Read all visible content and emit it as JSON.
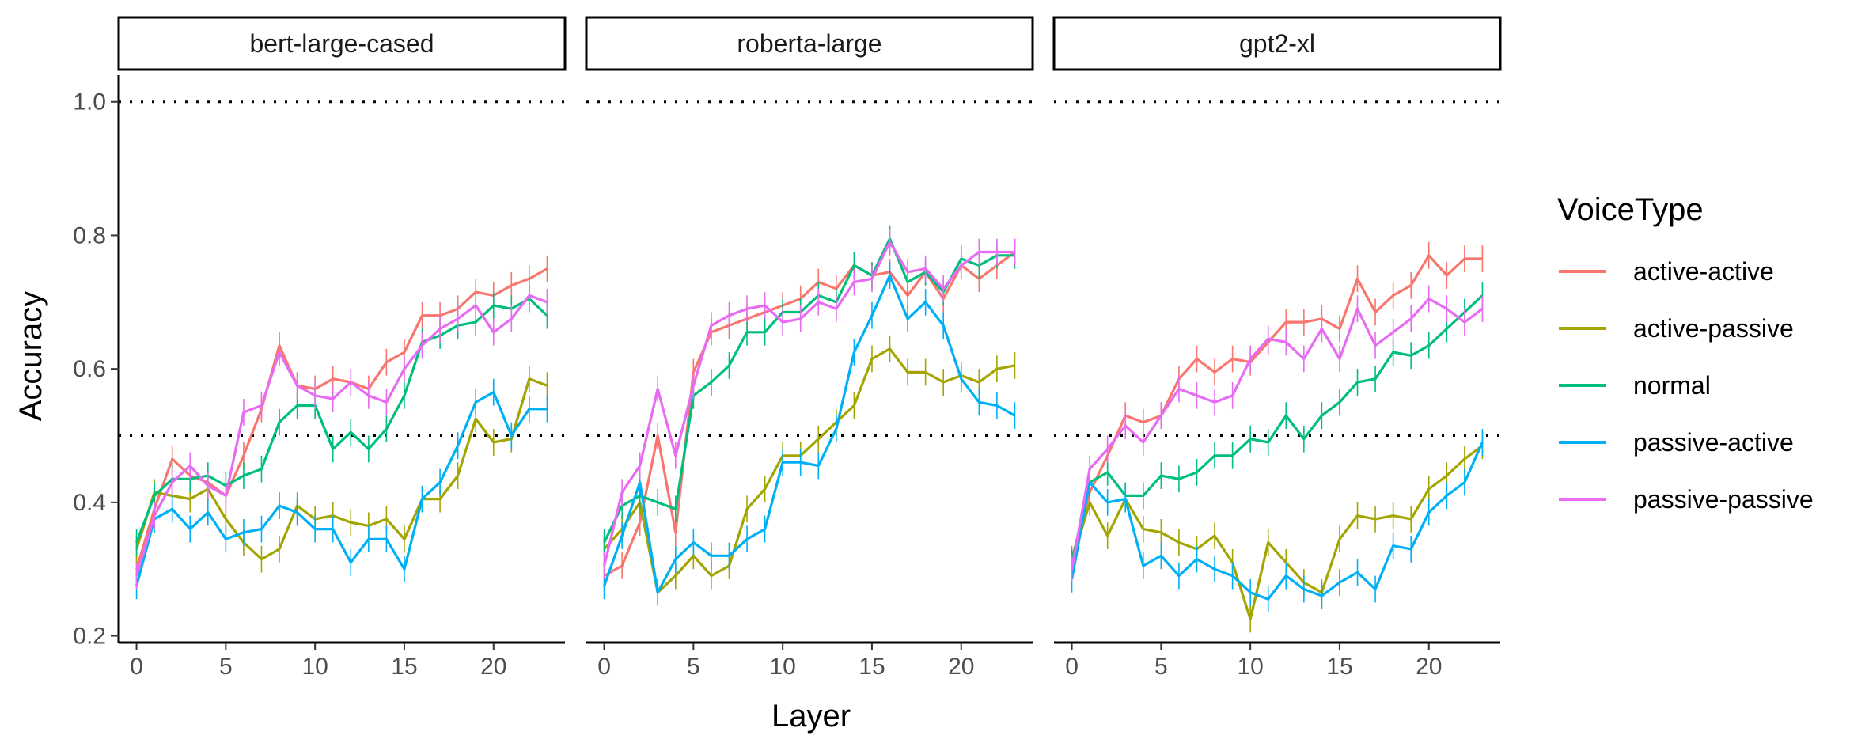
{
  "chart_data": {
    "type": "line",
    "xlabel": "Layer",
    "ylabel": "Accuracy",
    "xticks": [
      0,
      5,
      10,
      15,
      20
    ],
    "yticks": [
      "0.2",
      "0.4",
      "0.6",
      "0.8",
      "1.0"
    ],
    "xlim": [
      -1,
      24
    ],
    "ylim": [
      0.19,
      1.04
    ],
    "reference_lines": [
      1.0,
      0.5
    ],
    "legend": {
      "title": "VoiceType",
      "placement": "right"
    },
    "colors": {
      "active-active": "#F8766D",
      "active-passive": "#A3A500",
      "normal": "#00BF7D",
      "passive-active": "#00B0F6",
      "passive-passive": "#E76BF3"
    },
    "series_names": [
      "active-active",
      "active-passive",
      "normal",
      "passive-active",
      "passive-passive"
    ],
    "x": [
      0,
      1,
      2,
      3,
      4,
      5,
      6,
      7,
      8,
      9,
      10,
      11,
      12,
      13,
      14,
      15,
      16,
      17,
      18,
      19,
      20,
      21,
      22,
      23
    ],
    "panels": [
      {
        "title": "bert-large-cased",
        "series": [
          {
            "name": "active-active",
            "values": [
              0.3,
              0.39,
              0.465,
              0.44,
              0.43,
              0.41,
              0.47,
              0.54,
              0.635,
              0.575,
              0.57,
              0.585,
              0.58,
              0.57,
              0.61,
              0.625,
              0.68,
              0.68,
              0.69,
              0.715,
              0.71,
              0.725,
              0.735,
              0.75
            ]
          },
          {
            "name": "active-passive",
            "values": [
              0.33,
              0.415,
              0.41,
              0.405,
              0.42,
              0.375,
              0.34,
              0.315,
              0.33,
              0.395,
              0.375,
              0.38,
              0.37,
              0.365,
              0.375,
              0.345,
              0.405,
              0.405,
              0.44,
              0.525,
              0.49,
              0.495,
              0.585,
              0.575
            ]
          },
          {
            "name": "normal",
            "values": [
              0.34,
              0.41,
              0.435,
              0.435,
              0.44,
              0.425,
              0.44,
              0.45,
              0.52,
              0.545,
              0.545,
              0.48,
              0.505,
              0.48,
              0.51,
              0.56,
              0.64,
              0.65,
              0.665,
              0.67,
              0.695,
              0.69,
              0.705,
              0.68
            ]
          },
          {
            "name": "passive-active",
            "values": [
              0.275,
              0.375,
              0.39,
              0.36,
              0.385,
              0.345,
              0.355,
              0.36,
              0.395,
              0.385,
              0.36,
              0.36,
              0.31,
              0.345,
              0.345,
              0.3,
              0.405,
              0.43,
              0.485,
              0.55,
              0.565,
              0.5,
              0.54,
              0.54
            ]
          },
          {
            "name": "passive-passive",
            "values": [
              0.29,
              0.38,
              0.43,
              0.455,
              0.425,
              0.41,
              0.535,
              0.545,
              0.625,
              0.575,
              0.56,
              0.555,
              0.58,
              0.56,
              0.55,
              0.6,
              0.635,
              0.66,
              0.675,
              0.695,
              0.655,
              0.675,
              0.71,
              0.7
            ]
          }
        ]
      },
      {
        "title": "roberta-large",
        "series": [
          {
            "name": "active-active",
            "values": [
              0.29,
              0.305,
              0.37,
              0.5,
              0.355,
              0.595,
              0.655,
              0.665,
              0.675,
              0.685,
              0.695,
              0.705,
              0.73,
              0.72,
              0.755,
              0.74,
              0.745,
              0.71,
              0.745,
              0.705,
              0.755,
              0.735,
              0.755,
              0.775
            ]
          },
          {
            "name": "active-passive",
            "values": [
              0.33,
              0.36,
              0.4,
              0.265,
              0.29,
              0.32,
              0.29,
              0.305,
              0.39,
              0.42,
              0.47,
              0.47,
              0.495,
              0.52,
              0.545,
              0.615,
              0.63,
              0.595,
              0.595,
              0.58,
              0.59,
              0.58,
              0.6,
              0.605
            ]
          },
          {
            "name": "normal",
            "values": [
              0.34,
              0.395,
              0.41,
              0.4,
              0.39,
              0.56,
              0.58,
              0.605,
              0.655,
              0.655,
              0.685,
              0.685,
              0.71,
              0.7,
              0.755,
              0.74,
              0.795,
              0.73,
              0.745,
              0.715,
              0.765,
              0.755,
              0.77,
              0.77
            ]
          },
          {
            "name": "passive-active",
            "values": [
              0.275,
              0.35,
              0.43,
              0.265,
              0.315,
              0.34,
              0.32,
              0.32,
              0.345,
              0.36,
              0.46,
              0.46,
              0.455,
              0.51,
              0.625,
              0.68,
              0.74,
              0.675,
              0.7,
              0.665,
              0.585,
              0.55,
              0.545,
              0.53
            ]
          },
          {
            "name": "passive-passive",
            "values": [
              0.305,
              0.415,
              0.455,
              0.57,
              0.47,
              0.575,
              0.665,
              0.68,
              0.69,
              0.695,
              0.67,
              0.675,
              0.7,
              0.69,
              0.73,
              0.735,
              0.79,
              0.745,
              0.75,
              0.72,
              0.755,
              0.775,
              0.775,
              0.775
            ]
          }
        ]
      },
      {
        "title": "gpt2-xl",
        "series": [
          {
            "name": "active-active",
            "values": [
              0.315,
              0.415,
              0.47,
              0.53,
              0.52,
              0.53,
              0.585,
              0.615,
              0.595,
              0.615,
              0.61,
              0.64,
              0.67,
              0.67,
              0.675,
              0.66,
              0.735,
              0.685,
              0.71,
              0.725,
              0.77,
              0.74,
              0.765,
              0.765
            ]
          },
          {
            "name": "active-passive",
            "values": [
              0.31,
              0.4,
              0.35,
              0.405,
              0.36,
              0.355,
              0.34,
              0.33,
              0.35,
              0.31,
              0.225,
              0.34,
              0.31,
              0.28,
              0.265,
              0.345,
              0.38,
              0.375,
              0.38,
              0.375,
              0.42,
              0.44,
              0.465,
              0.485
            ]
          },
          {
            "name": "normal",
            "values": [
              0.31,
              0.43,
              0.445,
              0.41,
              0.41,
              0.44,
              0.435,
              0.445,
              0.47,
              0.47,
              0.495,
              0.49,
              0.53,
              0.495,
              0.53,
              0.55,
              0.58,
              0.585,
              0.625,
              0.62,
              0.635,
              0.66,
              0.685,
              0.71
            ]
          },
          {
            "name": "passive-active",
            "values": [
              0.285,
              0.43,
              0.4,
              0.405,
              0.305,
              0.32,
              0.29,
              0.315,
              0.3,
              0.29,
              0.265,
              0.255,
              0.29,
              0.27,
              0.26,
              0.28,
              0.295,
              0.27,
              0.335,
              0.33,
              0.385,
              0.41,
              0.43,
              0.49
            ]
          },
          {
            "name": "passive-passive",
            "values": [
              0.3,
              0.45,
              0.48,
              0.515,
              0.49,
              0.53,
              0.57,
              0.56,
              0.55,
              0.56,
              0.615,
              0.645,
              0.64,
              0.615,
              0.66,
              0.615,
              0.69,
              0.635,
              0.655,
              0.675,
              0.705,
              0.69,
              0.67,
              0.69
            ]
          }
        ]
      }
    ]
  }
}
